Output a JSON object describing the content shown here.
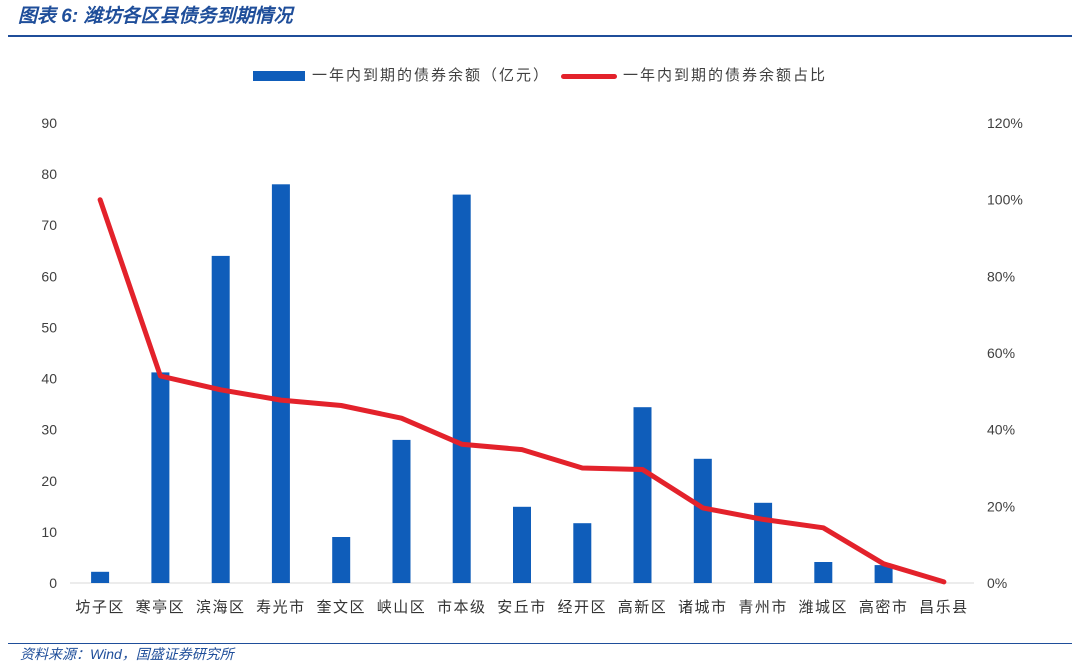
{
  "header": {
    "title": "图表 6: 潍坊各区县债务到期情况"
  },
  "footer": {
    "source": "资料来源：Wind，国盛证券研究所"
  },
  "chart_data": {
    "type": "bar",
    "legend": "top",
    "grid": false,
    "categories": [
      "坊子区",
      "寒亭区",
      "滨海区",
      "寿光市",
      "奎文区",
      "峡山区",
      "市本级",
      "安丘市",
      "经开区",
      "高新区",
      "诸城市",
      "青州市",
      "潍城区",
      "高密市",
      "昌乐县"
    ],
    "series": [
      {
        "name": "一年内到期的债券余额（亿元）",
        "type": "bar",
        "axis": "left",
        "color": "#0F5DBA",
        "values": [
          2.2,
          41.2,
          64,
          78,
          9,
          28,
          76,
          14.9,
          11.7,
          34.4,
          24.3,
          15.7,
          4.1,
          3.5,
          0
        ]
      },
      {
        "name": "一年内到期的债券余额占比",
        "type": "line",
        "axis": "right",
        "unit": "%",
        "color": "#E3222B",
        "values": [
          100,
          54,
          50.4,
          47.7,
          46.3,
          43,
          36.2,
          34.8,
          30,
          29.6,
          19.6,
          16.6,
          14.4,
          5,
          0.3
        ]
      }
    ],
    "y_left": {
      "ylim": [
        0,
        90
      ],
      "ticks": [
        0,
        10,
        20,
        30,
        40,
        50,
        60,
        70,
        80,
        90
      ]
    },
    "y_right": {
      "ylim": [
        0,
        120
      ],
      "ticks": [
        0,
        20,
        40,
        60,
        80,
        100,
        120
      ],
      "tick_labels": [
        "0%",
        "20%",
        "40%",
        "60%",
        "80%",
        "100%",
        "120%"
      ]
    }
  }
}
